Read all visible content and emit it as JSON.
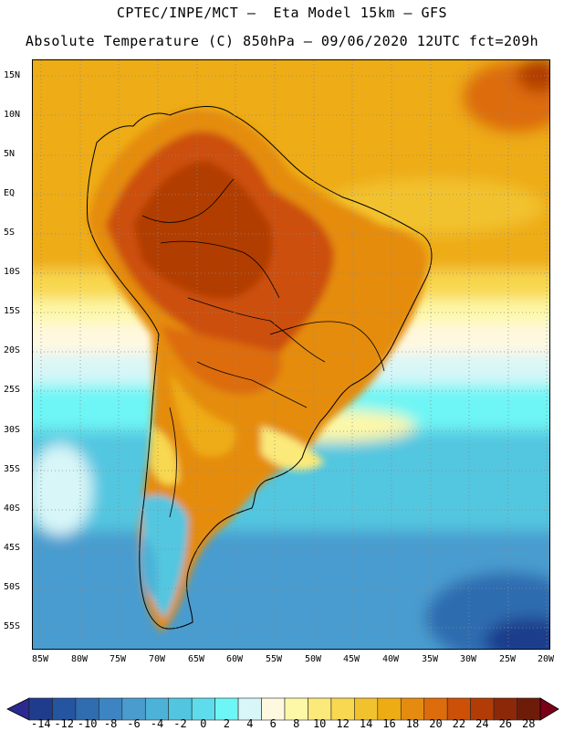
{
  "header": {
    "line1": "CPTEC/INPE/MCT –  Eta Model 15km – GFS",
    "line2": "Absolute Temperature (C) 850hPa – 09/06/2020 12UTC fct=209h"
  },
  "map": {
    "variable": "Absolute Temperature",
    "units": "C",
    "level": "850hPa",
    "lat_labels": [
      "15N",
      "10N",
      "5N",
      "EQ",
      "5S",
      "10S",
      "15S",
      "20S",
      "25S",
      "30S",
      "35S",
      "40S",
      "45S",
      "50S",
      "55S"
    ],
    "lon_labels": [
      "85W",
      "80W",
      "75W",
      "70W",
      "65W",
      "60W",
      "55W",
      "50W",
      "45W",
      "40W",
      "35W",
      "30W",
      "25W",
      "20W"
    ]
  },
  "colorbar": {
    "labels": [
      "-14",
      "-12",
      "-10",
      "-8",
      "-6",
      "-4",
      "-2",
      "0",
      "2",
      "4",
      "6",
      "8",
      "10",
      "12",
      "14",
      "16",
      "18",
      "20",
      "22",
      "24",
      "26",
      "28"
    ],
    "colors": [
      "#1f3c8c",
      "#2554a0",
      "#2f6cb0",
      "#3d85c2",
      "#4a9ccf",
      "#4cb2d8",
      "#52c6e0",
      "#5fdcec",
      "#6ef5f5",
      "#d8f6f8",
      "#fff8e0",
      "#fdf8a8",
      "#fbe97a",
      "#f8d850",
      "#f2c22e",
      "#eeac14",
      "#e58c10",
      "#dd6c0c",
      "#cc5008",
      "#b23c06",
      "#8c2808",
      "#6e1c0a"
    ],
    "under_color": "#2a2a90",
    "over_color": "#7a0018"
  }
}
